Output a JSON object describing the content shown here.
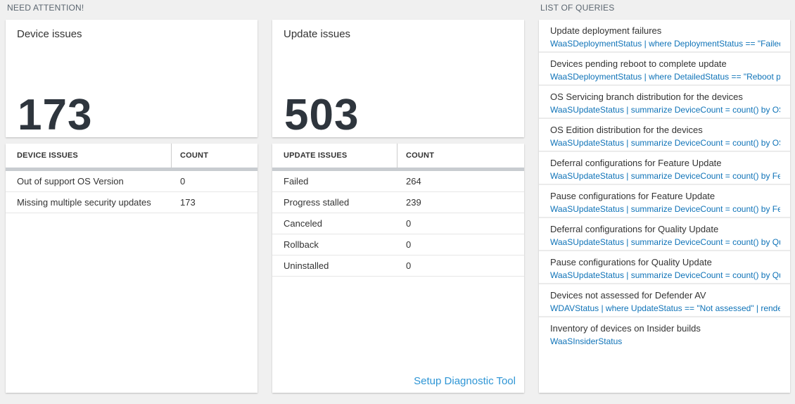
{
  "colors": {
    "page_background": "#f0f0f0",
    "tile_background": "#ffffff",
    "big_number_color": "#2e353d",
    "query_link_blue": "#0f73b8",
    "diagnostic_link_blue": "#2e95d5",
    "header_bar_gray": "#c8ccd0"
  },
  "sections": {
    "need_attention": "NEED ATTENTION!",
    "list_of_queries": "LIST OF QUERIES"
  },
  "device_card": {
    "title": "Device issues",
    "count": "173"
  },
  "device_table": {
    "columns": [
      "DEVICE ISSUES",
      "COUNT"
    ],
    "rows": [
      {
        "label": "Out of support OS Version",
        "count": "0"
      },
      {
        "label": "Missing multiple security updates",
        "count": "173"
      }
    ]
  },
  "update_card": {
    "title": "Update issues",
    "count": "503"
  },
  "update_table": {
    "columns": [
      "UPDATE ISSUES",
      "COUNT"
    ],
    "rows": [
      {
        "label": "Failed",
        "count": "264"
      },
      {
        "label": "Progress stalled",
        "count": "239"
      },
      {
        "label": "Canceled",
        "count": "0"
      },
      {
        "label": "Rollback",
        "count": "0"
      },
      {
        "label": "Uninstalled",
        "count": "0"
      }
    ],
    "footer_link": "Setup Diagnostic Tool"
  },
  "queries": {
    "items": [
      {
        "title": "Update deployment failures",
        "query": "WaaSDeploymentStatus | where DeploymentStatus == \"Failed\" |..."
      },
      {
        "title": "Devices pending reboot to complete update",
        "query": "WaaSDeploymentStatus | where DetailedStatus == \"Reboot pend..."
      },
      {
        "title": "OS Servicing branch distribution for the devices",
        "query": "WaaSUpdateStatus | summarize DeviceCount = count() by OSSer..."
      },
      {
        "title": "OS Edition distribution for the devices",
        "query": "WaaSUpdateStatus | summarize DeviceCount = count() by OSEdit..."
      },
      {
        "title": "Deferral configurations for Feature Update",
        "query": "WaaSUpdateStatus | summarize DeviceCount = count() by Featur..."
      },
      {
        "title": "Pause configurations for Feature Update",
        "query": "WaaSUpdateStatus | summarize DeviceCount = count() by Featur..."
      },
      {
        "title": "Deferral configurations for Quality Update",
        "query": "WaaSUpdateStatus | summarize DeviceCount = count() by Qualit..."
      },
      {
        "title": "Pause configurations for Quality Update",
        "query": "WaaSUpdateStatus | summarize DeviceCount = count() by Qualit..."
      },
      {
        "title": "Devices not assessed for Defender AV",
        "query": "WDAVStatus | where UpdateStatus == \"Not assessed\" | render ta..."
      },
      {
        "title": "Inventory of devices on Insider builds",
        "query": "WaaSInsiderStatus"
      }
    ]
  }
}
